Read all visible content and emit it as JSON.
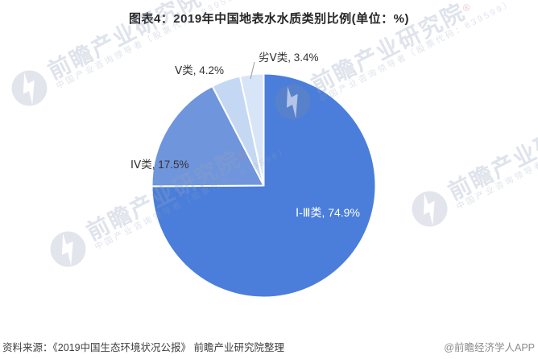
{
  "header": {
    "title": "图表4：2019年中国地表水水质类别比例(单位：%)"
  },
  "chart_data": {
    "type": "pie",
    "title": "图表4：2019年中国地表水水质类别比例(单位：%)",
    "unit": "%",
    "categories": [
      "Ⅰ-Ⅲ类",
      "ⅠⅤ类",
      "Ⅴ类",
      "劣Ⅴ类"
    ],
    "values": [
      74.9,
      17.5,
      4.2,
      3.4
    ],
    "colors": [
      "#4A7EDA",
      "#6F95DC",
      "#C5D8F3",
      "#D8E5F8"
    ],
    "start_angle_deg": 0,
    "direction": "clockwise",
    "legend": "none",
    "labels": [
      "Ⅰ-Ⅲ类, 74.9%",
      "ⅠⅤ类, 17.5%",
      "Ⅴ类, 4.2%",
      "劣Ⅴ类, 3.4%"
    ]
  },
  "watermark": {
    "brand": "前瞻产业研究院",
    "registered": "®",
    "subtitle": "中国产业咨询领导者（股票代码：839599）"
  },
  "footer": {
    "source": "资料来源：《2019中国生态环境状况公报》 前瞻产业研究院整理",
    "credit": "@前瞻经济学人APP"
  }
}
